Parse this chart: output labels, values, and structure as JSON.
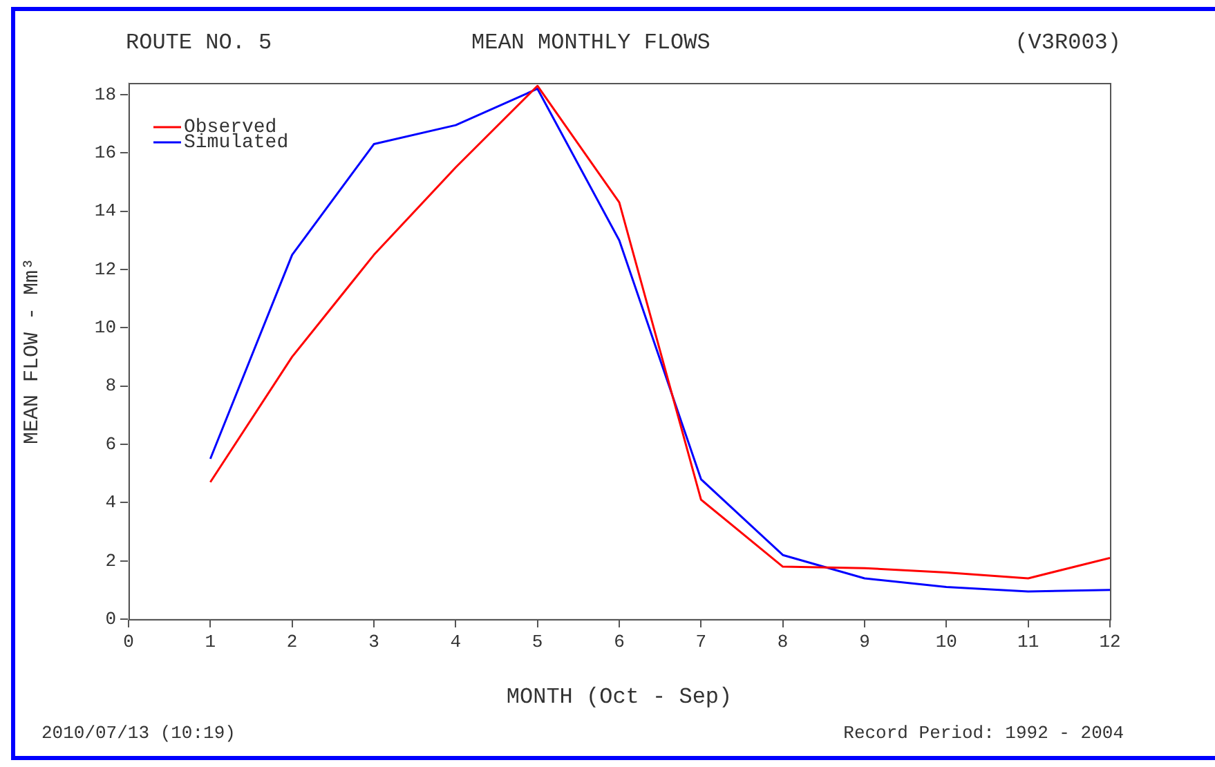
{
  "chart_data": {
    "type": "line",
    "title": "MEAN MONTHLY FLOWS",
    "xlabel": "MONTH (Oct - Sep)",
    "ylabel": "MEAN FLOW - Mm³",
    "x": [
      1,
      2,
      3,
      4,
      5,
      6,
      7,
      8,
      9,
      10,
      11,
      12
    ],
    "series": [
      {
        "name": "Observed",
        "color": "#ff0000",
        "values": [
          4.7,
          9.0,
          12.5,
          15.5,
          18.3,
          14.3,
          4.1,
          1.8,
          1.75,
          1.6,
          1.4,
          2.1
        ]
      },
      {
        "name": "Simulated",
        "color": "#0000ff",
        "values": [
          5.5,
          12.5,
          16.3,
          16.95,
          18.2,
          13.0,
          4.8,
          2.2,
          1.4,
          1.1,
          0.95,
          1.0
        ]
      }
    ],
    "xlim": [
      0,
      12
    ],
    "xticks": [
      0,
      1,
      2,
      3,
      4,
      5,
      6,
      7,
      8,
      9,
      10,
      11,
      12
    ],
    "ylim": [
      0,
      18.4
    ],
    "yticks": [
      0,
      2,
      4,
      6,
      8,
      10,
      12,
      14,
      16,
      18
    ],
    "grid": false,
    "legend": "top left",
    "marker": "none",
    "line_style": "solid",
    "annotations": [
      "ROUTE NO. 5",
      "(V3R003)",
      "2010/07/13 (10:19)",
      "Record Period: 1992 - 2004"
    ]
  }
}
